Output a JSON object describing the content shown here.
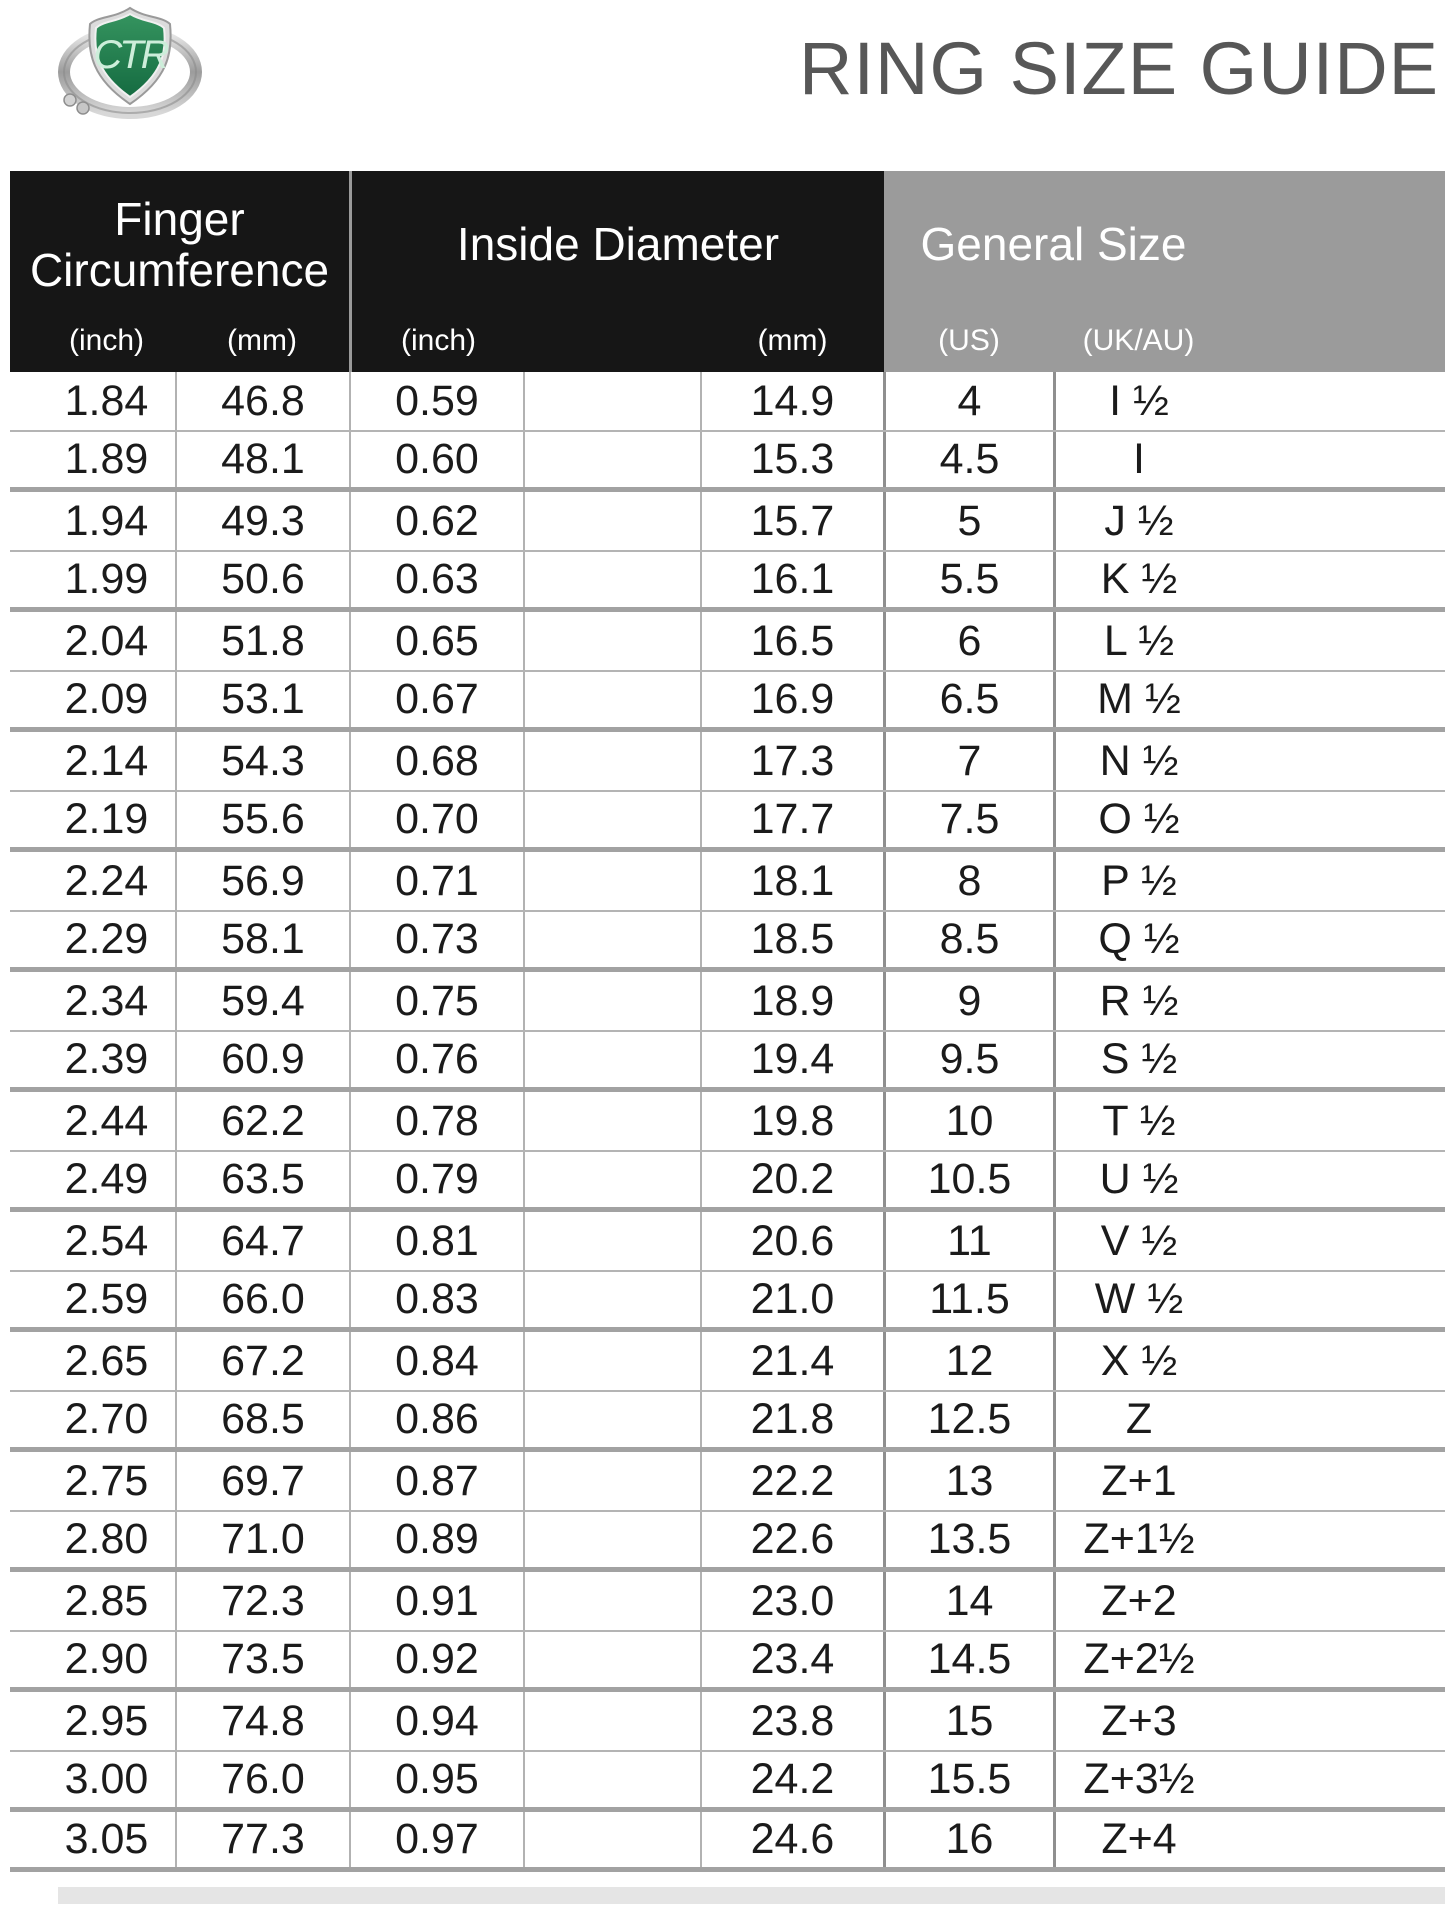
{
  "title": "RING SIZE GUIDE",
  "logo": {
    "letters": "CTR",
    "description": "silver ring with green CTR shield"
  },
  "colors": {
    "header_black": "#161616",
    "header_gray": "#9b9b9b",
    "title_text": "#575757",
    "shield_green": "#1f8a52",
    "row_line": "#b4b4b4",
    "pair_line": "#a2a2a2"
  },
  "chart_data": {
    "type": "table",
    "title": "RING SIZE GUIDE",
    "column_groups": [
      {
        "label": "Finger Circumference",
        "subs": [
          "(inch)",
          "(mm)"
        ]
      },
      {
        "label": "Inside Diameter",
        "subs": [
          "(inch)",
          "(mm)"
        ]
      },
      {
        "label": "General Size",
        "subs": [
          "(US)",
          "(UK/AU)"
        ]
      }
    ],
    "columns": [
      "Finger Circumference (inch)",
      "Finger Circumference (mm)",
      "Inside Diameter (inch)",
      "Inside Diameter (mm)",
      "General Size (US)",
      "General Size (UK/AU)"
    ],
    "rows": [
      [
        "1.84",
        "46.8",
        "0.59",
        "14.9",
        "4",
        "I ½"
      ],
      [
        "1.89",
        "48.1",
        "0.60",
        "15.3",
        "4.5",
        "I"
      ],
      [
        "1.94",
        "49.3",
        "0.62",
        "15.7",
        "5",
        "J ½"
      ],
      [
        "1.99",
        "50.6",
        "0.63",
        "16.1",
        "5.5",
        "K ½"
      ],
      [
        "2.04",
        "51.8",
        "0.65",
        "16.5",
        "6",
        "L ½"
      ],
      [
        "2.09",
        "53.1",
        "0.67",
        "16.9",
        "6.5",
        "M ½"
      ],
      [
        "2.14",
        "54.3",
        "0.68",
        "17.3",
        "7",
        "N ½"
      ],
      [
        "2.19",
        "55.6",
        "0.70",
        "17.7",
        "7.5",
        "O ½"
      ],
      [
        "2.24",
        "56.9",
        "0.71",
        "18.1",
        "8",
        "P ½"
      ],
      [
        "2.29",
        "58.1",
        "0.73",
        "18.5",
        "8.5",
        "Q ½"
      ],
      [
        "2.34",
        "59.4",
        "0.75",
        "18.9",
        "9",
        "R ½"
      ],
      [
        "2.39",
        "60.9",
        "0.76",
        "19.4",
        "9.5",
        "S ½"
      ],
      [
        "2.44",
        "62.2",
        "0.78",
        "19.8",
        "10",
        "T ½"
      ],
      [
        "2.49",
        "63.5",
        "0.79",
        "20.2",
        "10.5",
        "U ½"
      ],
      [
        "2.54",
        "64.7",
        "0.81",
        "20.6",
        "11",
        "V ½"
      ],
      [
        "2.59",
        "66.0",
        "0.83",
        "21.0",
        "11.5",
        "W ½"
      ],
      [
        "2.65",
        "67.2",
        "0.84",
        "21.4",
        "12",
        "X ½"
      ],
      [
        "2.70",
        "68.5",
        "0.86",
        "21.8",
        "12.5",
        "Z"
      ],
      [
        "2.75",
        "69.7",
        "0.87",
        "22.2",
        "13",
        "Z+1"
      ],
      [
        "2.80",
        "71.0",
        "0.89",
        "22.6",
        "13.5",
        "Z+1½"
      ],
      [
        "2.85",
        "72.3",
        "0.91",
        "23.0",
        "14",
        "Z+2"
      ],
      [
        "2.90",
        "73.5",
        "0.92",
        "23.4",
        "14.5",
        "Z+2½"
      ],
      [
        "2.95",
        "74.8",
        "0.94",
        "23.8",
        "15",
        "Z+3"
      ],
      [
        "3.00",
        "76.0",
        "0.95",
        "24.2",
        "15.5",
        "Z+3½"
      ],
      [
        "3.05",
        "77.3",
        "0.97",
        "24.6",
        "16",
        "Z+4"
      ]
    ]
  }
}
